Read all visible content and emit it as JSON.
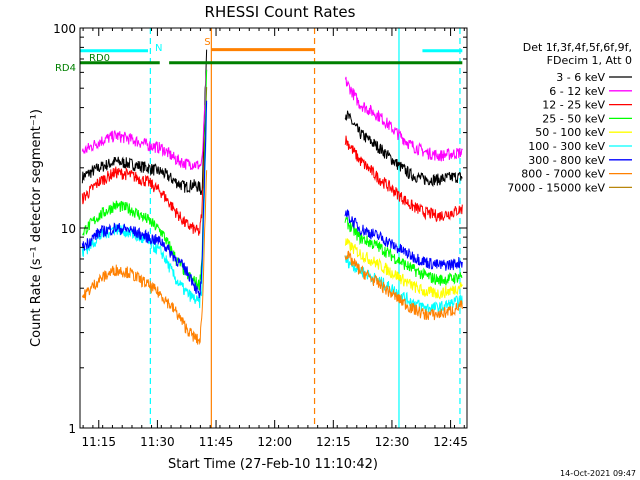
{
  "chart_data": {
    "type": "line",
    "title": "RHESSI Count Rates",
    "xlabel": "Start Time (27-Feb-10 11:10:42)",
    "ylabel": "Count Rate (s⁻¹ detector segment⁻¹)",
    "y_scale": "log",
    "ylim": [
      1,
      100
    ],
    "xlim_minutes": [
      11.17,
      12.82
    ],
    "y_ticks": [
      {
        "value": 1,
        "label": "1"
      },
      {
        "value": 10,
        "label": "10"
      },
      {
        "value": 100,
        "label": "100"
      }
    ],
    "x_ticks": [
      {
        "value": 11.25,
        "label": "11:15"
      },
      {
        "value": 11.5,
        "label": "11:30"
      },
      {
        "value": 11.75,
        "label": "11:45"
      },
      {
        "value": 12.0,
        "label": "12:00"
      },
      {
        "value": 12.25,
        "label": "12:15"
      },
      {
        "value": 12.5,
        "label": "12:30"
      },
      {
        "value": 12.75,
        "label": "12:45"
      }
    ],
    "legend_header": [
      "Det 1f,3f,4f,5f,6f,9f,",
      "FDecim 1, Att 0"
    ],
    "legend_position": "right",
    "series": [
      {
        "name": "3 - 6 keV",
        "color": "#000000",
        "segments": [
          {
            "x": [
              11.18,
              11.25,
              11.32,
              11.38,
              11.46,
              11.52,
              11.58,
              11.62,
              11.65,
              11.68,
              11.69,
              11.71
            ],
            "y": [
              18,
              20,
              21.5,
              21,
              20,
              19,
              17,
              16,
              16.5,
              16,
              15,
              80
            ]
          },
          {
            "x": [
              12.3,
              12.36,
              12.45,
              12.52,
              12.58,
              12.64,
              12.7,
              12.76,
              12.8
            ],
            "y": [
              38,
              30,
              25,
              21,
              18.5,
              17.5,
              17.5,
              18,
              18
            ]
          }
        ]
      },
      {
        "name": "6 - 12 keV",
        "color": "#ff00ff",
        "segments": [
          {
            "x": [
              11.18,
              11.25,
              11.32,
              11.38,
              11.46,
              11.52,
              11.58,
              11.62,
              11.65,
              11.68,
              11.69,
              11.71
            ],
            "y": [
              24,
              27,
              29,
              28,
              26,
              25,
              22,
              21,
              21,
              20.5,
              21,
              60
            ]
          },
          {
            "x": [
              12.3,
              12.36,
              12.45,
              12.52,
              12.58,
              12.64,
              12.7,
              12.76,
              12.8
            ],
            "y": [
              55,
              42,
              36,
              30,
              26,
              24,
              23,
              23.5,
              24
            ]
          }
        ]
      },
      {
        "name": "12 - 25 keV",
        "color": "#ff0000",
        "segments": [
          {
            "x": [
              11.18,
              11.25,
              11.32,
              11.38,
              11.46,
              11.52,
              11.58,
              11.62,
              11.65,
              11.68,
              11.69,
              11.71
            ],
            "y": [
              14,
              17,
              19,
              18.5,
              17,
              15,
              12,
              10.5,
              10,
              9.5,
              12,
              50
            ]
          },
          {
            "x": [
              12.3,
              12.36,
              12.45,
              12.52,
              12.58,
              12.64,
              12.7,
              12.76,
              12.8
            ],
            "y": [
              28,
              22,
              17.5,
              15,
              13,
              12,
              11.5,
              12,
              12.5
            ]
          }
        ]
      },
      {
        "name": "25 - 50 keV",
        "color": "#00ff00",
        "segments": [
          {
            "x": [
              11.18,
              11.25,
              11.32,
              11.38,
              11.46,
              11.52,
              11.58,
              11.62,
              11.65,
              11.68,
              11.69,
              11.71
            ],
            "y": [
              9.5,
              11.5,
              13,
              12.5,
              11,
              9.5,
              7,
              6,
              5.5,
              5.2,
              7,
              60
            ]
          },
          {
            "x": [
              12.3,
              12.36,
              12.45,
              12.52,
              12.58,
              12.64,
              12.7,
              12.76,
              12.8
            ],
            "y": [
              11,
              9,
              8,
              7,
              6.3,
              5.8,
              5.5,
              5.6,
              5.8
            ]
          }
        ]
      },
      {
        "name": "50 - 100 keV",
        "color": "#ffff00",
        "segments": [
          {
            "x": [
              12.3,
              12.36,
              12.45,
              12.52,
              12.58,
              12.64,
              12.7,
              12.76,
              12.8
            ],
            "y": [
              8.5,
              7.5,
              6.5,
              5.8,
              5.2,
              4.8,
              4.7,
              4.9,
              5.2
            ]
          }
        ]
      },
      {
        "name": "100 - 300 keV",
        "color": "#00ffff",
        "segments": [
          {
            "x": [
              11.18,
              11.25,
              11.32,
              11.38,
              11.46,
              11.52,
              11.58,
              11.62,
              11.65,
              11.68,
              11.69,
              11.71
            ],
            "y": [
              7.5,
              9,
              10,
              9.5,
              8.5,
              7.5,
              5.5,
              4.8,
              4.5,
              4.2,
              5,
              40
            ]
          },
          {
            "x": [
              12.3,
              12.36,
              12.45,
              12.52,
              12.58,
              12.64,
              12.7,
              12.76,
              12.8
            ],
            "y": [
              7,
              6.2,
              5.4,
              4.8,
              4.3,
              4.0,
              4.0,
              4.2,
              4.4
            ]
          }
        ]
      },
      {
        "name": "300 - 800 keV",
        "color": "#0000ff",
        "segments": [
          {
            "x": [
              11.18,
              11.25,
              11.32,
              11.38,
              11.46,
              11.52,
              11.58,
              11.62,
              11.65,
              11.68,
              11.69,
              11.71
            ],
            "y": [
              8,
              9.5,
              10,
              9.8,
              9,
              8.5,
              7,
              6.2,
              5.5,
              4.5,
              6,
              45
            ]
          },
          {
            "x": [
              12.3,
              12.36,
              12.45,
              12.52,
              12.58,
              12.64,
              12.7,
              12.76,
              12.8
            ],
            "y": [
              12,
              10,
              9,
              8,
              7.3,
              6.8,
              6.5,
              6.6,
              6.8
            ]
          }
        ]
      },
      {
        "name": "800 - 7000 keV",
        "color": "#ff8000",
        "segments": [
          {
            "x": [
              11.18,
              11.25,
              11.32,
              11.38,
              11.46,
              11.52,
              11.58,
              11.62,
              11.65,
              11.68,
              11.69,
              11.71
            ],
            "y": [
              4.5,
              5.5,
              6.2,
              6,
              5.2,
              4.6,
              3.8,
              3.2,
              2.9,
              2.7,
              3.5,
              20
            ]
          },
          {
            "x": [
              12.3,
              12.36,
              12.45,
              12.52,
              12.58,
              12.64,
              12.7,
              12.76,
              12.8
            ],
            "y": [
              7.5,
              6.2,
              5.2,
              4.5,
              4.0,
              3.7,
              3.7,
              3.9,
              4.1
            ]
          }
        ]
      },
      {
        "name": "7000 - 15000 keV",
        "color": "#b8860b",
        "segments": []
      }
    ],
    "state_bars": [
      {
        "label": "RD0",
        "color": "#00ffff",
        "level": 77,
        "spans": [
          [
            11.17,
            11.46
          ],
          [
            12.63,
            12.8
          ]
        ]
      },
      {
        "label": "RD4",
        "color": "#008000",
        "level": 67,
        "spans": [
          [
            11.17,
            11.51
          ],
          [
            11.55,
            12.8
          ]
        ]
      },
      {
        "label": "N",
        "color": "#00ffff"
      },
      {
        "label": "S",
        "color": "#ff8000",
        "level": 78,
        "spans": [
          [
            11.73,
            12.17
          ]
        ]
      }
    ],
    "vlines": [
      {
        "x": 11.47,
        "color": "#00ffff",
        "style": "dashed"
      },
      {
        "x": 11.73,
        "color": "#ff8000",
        "style": "solid"
      },
      {
        "x": 12.17,
        "color": "#ff8000",
        "style": "dashed"
      },
      {
        "x": 12.53,
        "color": "#00ffff",
        "style": "solid"
      },
      {
        "x": 12.79,
        "color": "#00ffff",
        "style": "dashed"
      }
    ]
  },
  "footer_timestamp": "14-Oct-2021 09:47"
}
